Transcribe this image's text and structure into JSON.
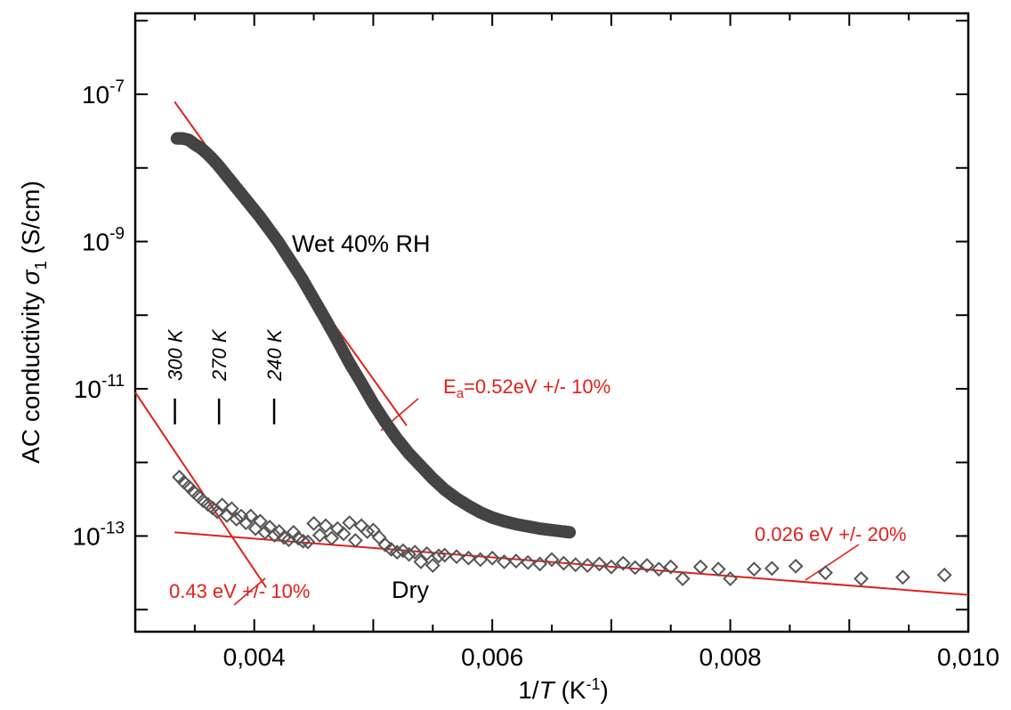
{
  "chart_data": {
    "type": "scatter",
    "title": "",
    "xlabel": {
      "pre": "1/",
      "italic": "T",
      "post": " (K",
      "sup": "-1",
      "end": ")"
    },
    "ylabel": {
      "pre": "AC conductivity ",
      "sym": "σ",
      "sub": "1",
      "post": " (S/cm)"
    },
    "xlim": [
      0.003,
      0.01
    ],
    "ylim_log10": [
      -14.3,
      -5.9
    ],
    "y_scale": "log",
    "x_ticks": [
      {
        "value": 0.004,
        "label": "0,004"
      },
      {
        "value": 0.006,
        "label": "0,006"
      },
      {
        "value": 0.008,
        "label": "0,008"
      },
      {
        "value": 0.01,
        "label": "0,010"
      }
    ],
    "y_ticks": [
      {
        "exp": -7,
        "base": "10",
        "sup": "-7"
      },
      {
        "exp": -9,
        "base": "10",
        "sup": "-9"
      },
      {
        "exp": -11,
        "base": "10",
        "sup": "-11"
      },
      {
        "exp": -13,
        "base": "10",
        "sup": "-13"
      }
    ],
    "series": [
      {
        "name": "Wet 40% RH",
        "marker": "filled-circle",
        "color": "#444444",
        "x": [
          0.00335,
          0.0034,
          0.00345,
          0.0035,
          0.00355,
          0.0036,
          0.00365,
          0.0037,
          0.00375,
          0.0038,
          0.00385,
          0.0039,
          0.00395,
          0.004,
          0.00405,
          0.0041,
          0.0042,
          0.0043,
          0.0044,
          0.0045,
          0.0046,
          0.0047,
          0.0048,
          0.0049,
          0.005,
          0.0051,
          0.0052,
          0.0053,
          0.0054,
          0.0055,
          0.0056,
          0.0057,
          0.0058,
          0.0059,
          0.006,
          0.0061,
          0.0062,
          0.0063,
          0.0064,
          0.0065,
          0.0066,
          0.00665
        ],
        "log10_y": [
          -7.6,
          -7.6,
          -7.62,
          -7.68,
          -7.73,
          -7.8,
          -7.88,
          -7.97,
          -8.07,
          -8.17,
          -8.27,
          -8.37,
          -8.47,
          -8.57,
          -8.67,
          -8.78,
          -9.0,
          -9.25,
          -9.5,
          -9.78,
          -10.06,
          -10.35,
          -10.65,
          -10.92,
          -11.2,
          -11.45,
          -11.68,
          -11.88,
          -12.05,
          -12.22,
          -12.37,
          -12.49,
          -12.59,
          -12.68,
          -12.75,
          -12.8,
          -12.84,
          -12.87,
          -12.9,
          -12.92,
          -12.94,
          -12.95
        ]
      },
      {
        "name": "Dry",
        "marker": "open-diamond",
        "color": "#555555",
        "x": [
          0.00337,
          0.00341,
          0.00345,
          0.00349,
          0.00353,
          0.00357,
          0.00361,
          0.00365,
          0.00369,
          0.00373,
          0.00377,
          0.00381,
          0.00385,
          0.00389,
          0.00393,
          0.00397,
          0.00401,
          0.00405,
          0.00409,
          0.00413,
          0.00417,
          0.00421,
          0.00425,
          0.00429,
          0.00433,
          0.00437,
          0.00441,
          0.00445,
          0.0045,
          0.00455,
          0.0046,
          0.00465,
          0.0047,
          0.00475,
          0.0048,
          0.00485,
          0.0049,
          0.00495,
          0.005,
          0.00505,
          0.0051,
          0.00515,
          0.0052,
          0.00525,
          0.0053,
          0.00535,
          0.0054,
          0.00545,
          0.0055,
          0.00555,
          0.0056,
          0.0057,
          0.0058,
          0.0059,
          0.006,
          0.0061,
          0.0062,
          0.0063,
          0.0064,
          0.0065,
          0.0066,
          0.0067,
          0.0068,
          0.0069,
          0.007,
          0.0071,
          0.0072,
          0.0073,
          0.0074,
          0.0075,
          0.0076,
          0.00775,
          0.0079,
          0.008,
          0.0082,
          0.00835,
          0.00855,
          0.0088,
          0.0091,
          0.00945,
          0.0098
        ],
        "log10_y": [
          -12.2,
          -12.27,
          -12.33,
          -12.4,
          -12.46,
          -12.52,
          -12.57,
          -12.62,
          -12.67,
          -12.58,
          -12.72,
          -12.63,
          -12.77,
          -12.73,
          -12.82,
          -12.73,
          -12.9,
          -12.8,
          -12.95,
          -12.88,
          -12.99,
          -12.94,
          -13.02,
          -13.05,
          -12.95,
          -13.03,
          -13.07,
          -13.08,
          -12.83,
          -12.99,
          -12.86,
          -13.03,
          -12.9,
          -12.97,
          -12.82,
          -13.06,
          -12.86,
          -12.94,
          -12.92,
          -13.02,
          -13.12,
          -13.18,
          -13.22,
          -13.2,
          -13.25,
          -13.22,
          -13.35,
          -13.24,
          -13.4,
          -13.27,
          -13.26,
          -13.28,
          -13.3,
          -13.32,
          -13.3,
          -13.35,
          -13.34,
          -13.36,
          -13.38,
          -13.32,
          -13.37,
          -13.39,
          -13.4,
          -13.38,
          -13.42,
          -13.37,
          -13.43,
          -13.4,
          -13.45,
          -13.42,
          -13.58,
          -13.42,
          -13.45,
          -13.58,
          -13.45,
          -13.44,
          -13.41,
          -13.5,
          -13.58,
          -13.56,
          -13.53
        ]
      }
    ],
    "fit_lines": [
      {
        "label": "E",
        "sub": "a",
        "rest": "=0.52eV +/- 10%",
        "x": [
          0.00333,
          0.00528
        ],
        "log10_y": [
          -7.1,
          -11.5
        ],
        "color": "#e0201b"
      },
      {
        "label": "0.43 eV +/- 10%",
        "x": [
          0.003,
          0.0041
        ],
        "log10_y": [
          -11.05,
          -13.7
        ],
        "color": "#e0201b"
      },
      {
        "label": "0.026 eV +/- 20%",
        "x": [
          0.00333,
          0.01
        ],
        "log10_y": [
          -12.95,
          -13.8
        ],
        "color": "#e0201b"
      }
    ],
    "temperature_markers": [
      {
        "label": "300 K",
        "x": 0.003333
      },
      {
        "label": "270 K",
        "x": 0.003704
      },
      {
        "label": "240 K",
        "x": 0.004167
      }
    ],
    "annotations": {
      "wet": "Wet 40% RH",
      "dry": "Dry"
    },
    "grid": false,
    "legend": "none"
  }
}
